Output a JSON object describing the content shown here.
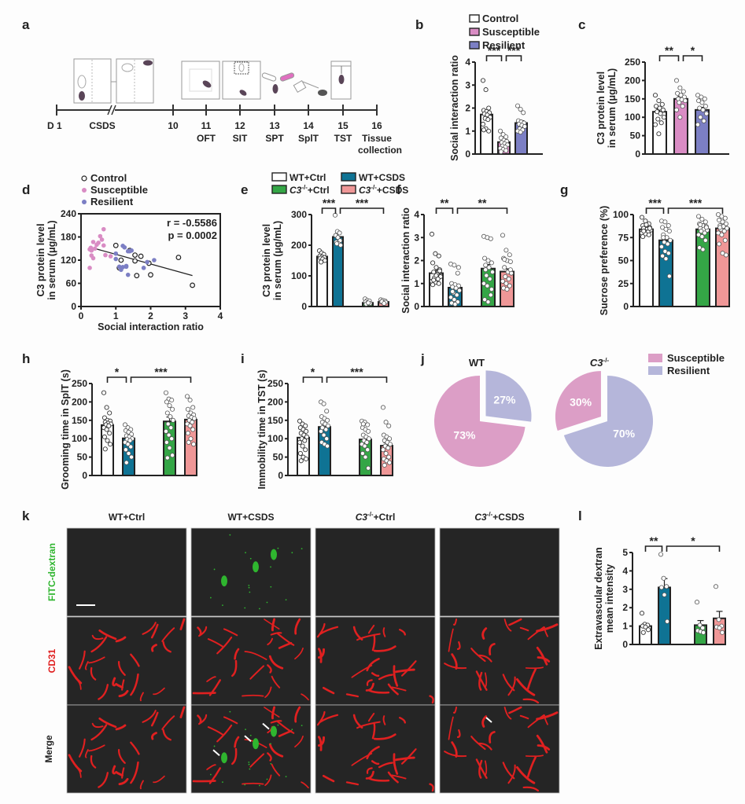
{
  "colors": {
    "control": "#ffffff",
    "susceptible": "#d98cc4",
    "resilient": "#7c7fc4",
    "wt_ctrl": "#ffffff",
    "wt_csds": "#0f7394",
    "c3_ctrl": "#34a646",
    "c3_csds": "#ef9797",
    "pie_susceptible": "#dc9ec6",
    "pie_resilient": "#b5b6da",
    "fitc": "#2fb52f",
    "cd31": "#e02020"
  },
  "panel_a": {
    "label": "a",
    "timeline": [
      {
        "day": "D 1",
        "test": ""
      },
      {
        "day": "CSDS",
        "test": ""
      },
      {
        "day": "10",
        "test": ""
      },
      {
        "day": "11",
        "test": "OFT"
      },
      {
        "day": "12",
        "test": "SIT"
      },
      {
        "day": "13",
        "test": "SPT"
      },
      {
        "day": "14",
        "test": "SplT"
      },
      {
        "day": "15",
        "test": "TST"
      },
      {
        "day": "16",
        "test": "Tissue collection"
      }
    ],
    "icons": [
      "csds-cage-icon",
      "csds-cage-divided-icon",
      "open-field-icon",
      "social-interaction-arena-icon",
      "sucrose-bottles-icon",
      "splash-spray-icon",
      "tail-suspension-icon"
    ]
  },
  "chart_data": [
    {
      "id": "b",
      "type": "bar",
      "label": "b",
      "legend": [
        "Control",
        "Susceptible",
        "Resilient"
      ],
      "categories": [
        "Control",
        "Susceptible",
        "Resilient"
      ],
      "values": [
        1.72,
        0.52,
        1.35
      ],
      "sem": [
        0.15,
        0.07,
        0.1
      ],
      "points": [
        [
          3.2,
          2.8,
          2.0,
          1.9,
          1.85,
          1.8,
          1.75,
          1.7,
          1.6,
          1.55,
          1.5,
          1.3,
          1.1,
          1.0,
          1.05
        ],
        [
          1.0,
          0.85,
          0.75,
          0.7,
          0.6,
          0.55,
          0.5,
          0.45,
          0.4,
          0.35,
          0.3,
          0.25,
          0.2,
          0.15,
          0.1
        ],
        [
          2.1,
          1.95,
          1.8,
          1.45,
          1.4,
          1.35,
          1.3,
          1.25,
          1.2,
          1.1,
          1.05,
          1.0,
          0.95
        ]
      ],
      "ylabel": "Social interaction ratio",
      "ylim": [
        0,
        4
      ],
      "yticks": [
        0,
        1,
        2,
        3,
        4
      ],
      "significance": [
        {
          "from": 0,
          "to": 1,
          "text": "***"
        },
        {
          "from": 1,
          "to": 2,
          "text": "***"
        }
      ]
    },
    {
      "id": "c",
      "type": "bar",
      "label": "c",
      "categories": [
        "Control",
        "Susceptible",
        "Resilient"
      ],
      "values": [
        115,
        150,
        120
      ],
      "sem": [
        8,
        7,
        7
      ],
      "points": [
        [
          160,
          145,
          135,
          130,
          125,
          120,
          115,
          110,
          100,
          95,
          85,
          80,
          55
        ],
        [
          200,
          180,
          170,
          165,
          160,
          155,
          150,
          148,
          145,
          140,
          130,
          120,
          100
        ],
        [
          160,
          155,
          150,
          145,
          140,
          130,
          125,
          120,
          110,
          100,
          90,
          80
        ]
      ],
      "ylabel": "C3 protein level in serum (μg/mL)",
      "ylabel_lines": [
        "C3 protein level",
        "in serum (μg/mL)"
      ],
      "ylim": [
        0,
        250
      ],
      "yticks": [
        0,
        50,
        100,
        150,
        200,
        250
      ],
      "significance": [
        {
          "from": 0,
          "to": 1,
          "text": "**"
        },
        {
          "from": 1,
          "to": 2,
          "text": "*"
        }
      ]
    },
    {
      "id": "d",
      "type": "scatter",
      "label": "d",
      "legend": [
        "Control",
        "Susceptible",
        "Resilient"
      ],
      "xlabel": "Social interaction ratio",
      "ylabel_lines": [
        "C3 protein level",
        "in serum (μg/mL)"
      ],
      "xlim": [
        0,
        4
      ],
      "xticks": [
        0,
        1,
        2,
        3,
        4
      ],
      "ylim": [
        0,
        240
      ],
      "yticks": [
        0,
        60,
        120,
        180,
        240
      ],
      "annotation_r": "r = -0.5586",
      "annotation_p": "p = 0.0002",
      "fit_line": {
        "x": [
          0.4,
          3.2
        ],
        "y": [
          150,
          80
        ]
      },
      "series": [
        {
          "name": "Control",
          "x": [
            1.0,
            1.15,
            1.4,
            1.55,
            1.55,
            1.72,
            1.6,
            1.95,
            2.0,
            2.8,
            3.2,
            1.1
          ],
          "y": [
            158,
            120,
            145,
            133,
            118,
            130,
            80,
            112,
            82,
            127,
            55,
            100
          ]
        },
        {
          "name": "Susceptible",
          "x": [
            0.25,
            0.28,
            0.3,
            0.35,
            0.35,
            0.4,
            0.45,
            0.5,
            0.55,
            0.6,
            0.65,
            0.65,
            0.7,
            0.85,
            0.25,
            0.3
          ],
          "y": [
            148,
            152,
            132,
            125,
            167,
            150,
            160,
            165,
            182,
            173,
            158,
            200,
            133,
            130,
            100,
            145
          ]
        },
        {
          "name": "Resilient",
          "x": [
            1.0,
            1.0,
            1.1,
            1.2,
            1.25,
            1.3,
            1.35,
            1.4,
            1.45,
            1.15,
            1.2,
            1.3,
            1.8,
            1.9,
            2.1,
            1.35
          ],
          "y": [
            137,
            123,
            103,
            157,
            153,
            103,
            82,
            143,
            145,
            95,
            102,
            105,
            100,
            115,
            120,
            143
          ]
        }
      ]
    },
    {
      "id": "e",
      "type": "bar",
      "label": "e",
      "legend": [
        "WT+Ctrl",
        "WT+CSDS",
        "C3-/-+Ctrl",
        "C3-/-+CSDS"
      ],
      "legend_parts": [
        {
          "italic": "",
          "sup": "",
          "rest": "WT+Ctrl"
        },
        {
          "italic": "",
          "sup": "",
          "rest": "WT+CSDS"
        },
        {
          "italic": "C3",
          "sup": "-/-",
          "rest": "+Ctrl"
        },
        {
          "italic": "C3",
          "sup": "-/-",
          "rest": "+CSDS"
        }
      ],
      "categories": [
        "WT+Ctrl",
        "WT+CSDS",
        "C3-/-+Ctrl",
        "C3-/-+CSDS"
      ],
      "values": [
        163,
        227,
        12,
        15
      ],
      "sem": [
        4,
        9,
        2,
        2
      ],
      "points": [
        [
          182,
          175,
          170,
          165,
          162,
          160,
          158,
          155,
          150,
          145
        ],
        [
          298,
          245,
          240,
          232,
          225,
          215,
          210,
          205,
          200,
          205
        ],
        [
          25,
          20,
          18,
          15,
          12,
          10,
          8,
          12
        ],
        [
          22,
          20,
          18,
          15,
          12,
          14,
          16,
          10
        ]
      ],
      "ylabel_lines": [
        "C3 protein level",
        "in serum (μg/mL)"
      ],
      "ylim": [
        0,
        300
      ],
      "yticks": [
        0,
        100,
        200,
        300
      ],
      "significance": [
        {
          "from": 0,
          "to": 1,
          "text": "***"
        },
        {
          "from": 1,
          "to": 3,
          "text": "***"
        }
      ]
    },
    {
      "id": "f",
      "type": "bar",
      "label": "f",
      "categories": [
        "WT+Ctrl",
        "WT+CSDS",
        "C3-/-+Ctrl",
        "C3-/-+CSDS"
      ],
      "values": [
        1.45,
        0.82,
        1.65,
        1.52
      ],
      "sem": [
        0.12,
        0.1,
        0.18,
        0.12
      ],
      "points": [
        [
          3.15,
          2.3,
          2.2,
          1.9,
          1.7,
          1.6,
          1.5,
          1.4,
          1.3,
          1.25,
          1.2,
          1.1,
          1.05,
          1.0,
          0.95,
          1.35,
          1.55,
          1.15
        ],
        [
          1.85,
          1.8,
          1.45,
          1.0,
          0.95,
          0.9,
          0.85,
          0.8,
          0.7,
          0.6,
          0.5,
          0.4,
          0.3,
          0.2,
          0.15,
          0.1,
          1.7,
          0.65
        ],
        [
          3.05,
          3.0,
          2.95,
          2.1,
          2.0,
          1.9,
          1.8,
          1.7,
          1.5,
          1.35,
          1.2,
          1.0,
          0.9,
          0.5,
          0.3,
          0.2,
          0.75,
          1.6
        ],
        [
          3.1,
          2.45,
          2.25,
          2.1,
          2.0,
          1.95,
          1.7,
          1.5,
          1.45,
          1.3,
          1.2,
          1.1,
          1.0,
          0.9,
          0.8,
          0.75,
          1.6,
          2.05
        ]
      ],
      "ylabel": "Social interaction ratio",
      "ylim": [
        0,
        4
      ],
      "yticks": [
        0,
        1,
        2,
        3,
        4
      ],
      "significance": [
        {
          "from": 0,
          "to": 1,
          "text": "**"
        },
        {
          "from": 1,
          "to": 3,
          "text": "**"
        }
      ]
    },
    {
      "id": "g",
      "type": "bar",
      "label": "g",
      "categories": [
        "WT+Ctrl",
        "WT+CSDS",
        "C3-/-+Ctrl",
        "C3-/-+CSDS"
      ],
      "values": [
        84,
        72,
        84,
        85
      ],
      "sem": [
        1,
        3,
        2,
        2.5
      ],
      "points": [
        [
          97,
          93,
          90,
          88,
          87,
          86,
          85,
          84,
          83,
          82,
          81,
          80,
          79,
          78,
          76,
          89,
          85,
          82
        ],
        [
          93,
          92,
          88,
          86,
          84,
          82,
          78,
          75,
          72,
          70,
          68,
          65,
          60,
          58,
          55,
          52,
          33,
          75
        ],
        [
          98,
          95,
          92,
          90,
          88,
          87,
          85,
          84,
          83,
          82,
          80,
          78,
          76,
          72,
          64,
          62,
          86,
          89
        ],
        [
          100,
          98,
          96,
          94,
          92,
          90,
          88,
          87,
          85,
          84,
          82,
          80,
          78,
          72,
          68,
          58,
          56,
          86
        ]
      ],
      "ylabel": "Sucrose preference (%)",
      "ylim": [
        0,
        100
      ],
      "yticks": [
        0,
        25,
        50,
        75,
        100
      ],
      "significance": [
        {
          "from": 0,
          "to": 1,
          "text": "***"
        },
        {
          "from": 1,
          "to": 3,
          "text": "***"
        }
      ]
    },
    {
      "id": "h",
      "type": "bar",
      "label": "h",
      "categories": [
        "WT+Ctrl",
        "WT+CSDS",
        "C3-/-+Ctrl",
        "C3-/-+CSDS"
      ],
      "values": [
        137,
        101,
        147,
        152
      ],
      "sem": [
        7,
        5,
        12,
        7
      ],
      "points": [
        [
          225,
          185,
          170,
          157,
          150,
          148,
          145,
          142,
          140,
          138,
          135,
          130,
          125,
          115,
          105,
          95,
          85,
          72
        ],
        [
          138,
          130,
          125,
          122,
          118,
          112,
          108,
          105,
          100,
          98,
          95,
          90,
          85,
          78,
          70,
          60,
          50,
          35
        ],
        [
          225,
          208,
          205,
          200,
          190,
          180,
          170,
          160,
          150,
          140,
          130,
          120,
          110,
          100,
          90,
          75,
          55,
          48
        ],
        [
          215,
          205,
          185,
          180,
          170,
          165,
          162,
          158,
          155,
          150,
          145,
          140,
          135,
          125,
          115,
          100,
          85,
          90
        ]
      ],
      "ylabel": "Grooming time in SplT (s)",
      "ylim": [
        0,
        250
      ],
      "yticks": [
        0,
        50,
        100,
        150,
        200,
        250
      ],
      "significance": [
        {
          "from": 0,
          "to": 1,
          "text": "*"
        },
        {
          "from": 1,
          "to": 3,
          "text": "***"
        }
      ]
    },
    {
      "id": "i",
      "type": "bar",
      "label": "i",
      "categories": [
        "WT+Ctrl",
        "WT+CSDS",
        "C3-/-+Ctrl",
        "C3-/-+CSDS"
      ],
      "values": [
        103,
        132,
        98,
        81
      ],
      "sem": [
        7,
        7,
        7,
        8
      ],
      "points": [
        [
          148,
          140,
          135,
          130,
          125,
          120,
          115,
          110,
          105,
          100,
          95,
          90,
          80,
          70,
          60,
          50,
          45,
          40
        ],
        [
          200,
          195,
          175,
          160,
          155,
          150,
          145,
          140,
          135,
          130,
          125,
          120,
          110,
          100,
          90,
          85,
          80,
          130
        ],
        [
          148,
          145,
          138,
          130,
          125,
          120,
          110,
          105,
          100,
          95,
          90,
          85,
          80,
          70,
          60,
          50,
          20,
          140
        ],
        [
          185,
          145,
          135,
          110,
          105,
          100,
          95,
          90,
          85,
          80,
          75,
          70,
          60,
          50,
          45,
          40,
          35,
          28
        ]
      ],
      "ylabel": "Immobility time in TST (s)",
      "ylim": [
        0,
        250
      ],
      "yticks": [
        0,
        50,
        100,
        150,
        200,
        250
      ],
      "significance": [
        {
          "from": 0,
          "to": 1,
          "text": "*"
        },
        {
          "from": 1,
          "to": 3,
          "text": "***"
        }
      ]
    },
    {
      "id": "j",
      "type": "pie",
      "label": "j",
      "legend": [
        "Susceptible",
        "Resilient"
      ],
      "pies": [
        {
          "title": "WT",
          "title_italic": "",
          "title_sup": "",
          "slices": [
            {
              "name": "Susceptible",
              "value": 73,
              "label": "73%"
            },
            {
              "name": "Resilient",
              "value": 27,
              "label": "27%"
            }
          ]
        },
        {
          "title": "",
          "title_italic": "C3",
          "title_sup": "-/-",
          "slices": [
            {
              "name": "Susceptible",
              "value": 30,
              "label": "30%"
            },
            {
              "name": "Resilient",
              "value": 70,
              "label": "70%"
            }
          ]
        }
      ]
    },
    {
      "id": "l",
      "type": "bar",
      "label": "l",
      "categories": [
        "WT+Ctrl",
        "WT+CSDS",
        "C3-/-+Ctrl",
        "C3-/-+CSDS"
      ],
      "values": [
        1.0,
        3.1,
        1.05,
        1.42
      ],
      "sem": [
        0.12,
        0.48,
        0.25,
        0.38
      ],
      "points": [
        [
          1.7,
          1.1,
          1.05,
          1.0,
          0.95,
          0.8,
          0.65
        ],
        [
          4.9,
          3.6,
          3.15,
          3.1,
          2.7,
          1.25
        ],
        [
          2.3,
          1.05,
          0.9,
          0.75,
          0.7,
          0.65
        ],
        [
          3.15,
          1.35,
          1.0,
          0.95,
          0.9,
          0.65
        ]
      ],
      "ylabel_lines": [
        "Extravascular dextran",
        "mean intensity"
      ],
      "ylim": [
        0,
        5
      ],
      "yticks": [
        0,
        1,
        2,
        3,
        4,
        5
      ],
      "significance": [
        {
          "from": 0,
          "to": 1,
          "text": "**"
        },
        {
          "from": 1,
          "to": 3,
          "text": "*"
        }
      ]
    }
  ],
  "panel_k": {
    "label": "k",
    "columns": [
      {
        "italic": "",
        "sup": "",
        "rest": "WT+Ctrl"
      },
      {
        "italic": "",
        "sup": "",
        "rest": "WT+CSDS"
      },
      {
        "italic": "C3",
        "sup": "-/-",
        "rest": "+Ctrl"
      },
      {
        "italic": "C3",
        "sup": "-/-",
        "rest": "+CSDS"
      }
    ],
    "rows": [
      "FITC-dextran",
      "CD31",
      "Merge"
    ]
  }
}
